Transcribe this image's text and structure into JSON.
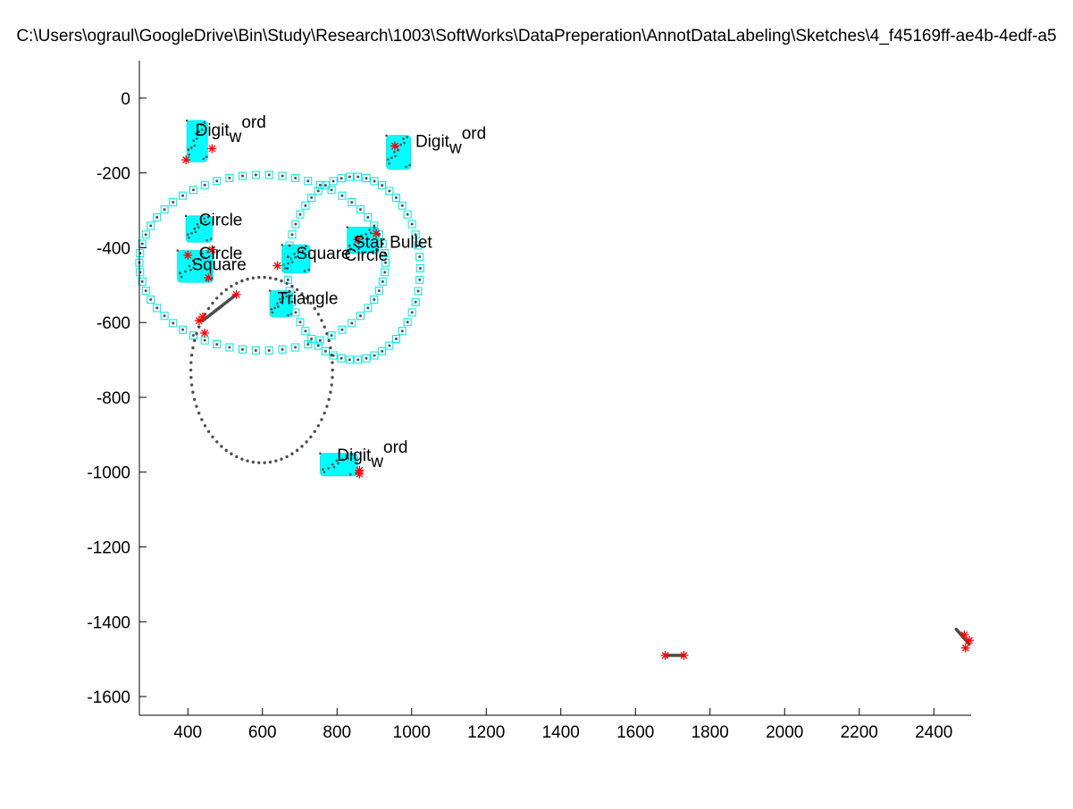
{
  "window": {
    "title": "C:\\Users\\ograul\\GoogleDrive\\Bin\\Study\\Research\\1003\\SoftWorks\\DataPreperation\\AnnotDataLabeling\\Sketches\\4_f45169ff-ae4b-4edf-a5"
  },
  "colors": {
    "background": "#ffffff",
    "axis": "#000000",
    "ink": "#4d4d4d",
    "box": "#00e5e5",
    "fill": "#00ffff",
    "star": "#ff0000"
  },
  "chart_data": {
    "type": "scatter",
    "title": "C:\\Users\\ograul\\GoogleDrive\\Bin\\Study\\Research\\1003\\SoftWorks\\DataPreperation\\AnnotDataLabeling\\Sketches\\4_f45169ff-ae4b-4edf-a5",
    "xlabel": "",
    "ylabel": "",
    "xlim": [
      270,
      2500
    ],
    "ylim": [
      -1650,
      100
    ],
    "grid": false,
    "xticks": [
      400,
      600,
      800,
      1000,
      1200,
      1400,
      1600,
      1800,
      2000,
      2200,
      2400
    ],
    "yticks": [
      0,
      -200,
      -400,
      -600,
      -800,
      -1000,
      -1200,
      -1400,
      -1600
    ],
    "big_circle": {
      "cx": 600,
      "cy": -440,
      "rx": 330,
      "ry": 235
    },
    "right_circle": {
      "cx": 845,
      "cy": -455,
      "rx": 178,
      "ry": 245
    },
    "ellipse": {
      "cx": 598,
      "cy": -727,
      "rx": 190,
      "ry": 248
    },
    "clusters": [
      {
        "label": "Digit",
        "sub": "w",
        "sup": "ord",
        "cx": 425,
        "cy": -115,
        "w": 55,
        "h": 110
      },
      {
        "label": "Digit",
        "sub": "w",
        "sup": "ord",
        "cx": 965,
        "cy": -145,
        "w": 65,
        "h": 90
      },
      {
        "label": "Circle",
        "cx": 430,
        "cy": -350,
        "w": 70,
        "h": 70
      },
      {
        "label": "Square",
        "cx": 420,
        "cy": -450,
        "w": 95,
        "h": 85
      },
      {
        "label": "Square",
        "cx": 690,
        "cy": -430,
        "w": 75,
        "h": 75
      },
      {
        "label": "Star Bullet",
        "cx": 870,
        "cy": -380,
        "w": 85,
        "h": 70
      },
      {
        "label": "Triangle",
        "cx": 650,
        "cy": -550,
        "w": 60,
        "h": 70
      },
      {
        "label": "Digit",
        "sub": "w",
        "sup": "ord",
        "cx": 805,
        "cy": -980,
        "w": 100,
        "h": 60
      }
    ],
    "labels": [
      {
        "text": "Digit",
        "sub": "w",
        "sup": "ord",
        "x": 420,
        "y": -100
      },
      {
        "text": "Digit",
        "sub": "w",
        "sup": "ord",
        "x": 1010,
        "y": -130
      },
      {
        "text": "Circle",
        "x": 430,
        "y": -340
      },
      {
        "text": "Circle",
        "x": 430,
        "y": -430
      },
      {
        "text": "Square",
        "x": 410,
        "y": -460
      },
      {
        "text": "Square",
        "x": 690,
        "y": -430
      },
      {
        "text": "Circle",
        "x": 820,
        "y": -435
      },
      {
        "text": "Star Bullet",
        "x": 845,
        "y": -400
      },
      {
        "text": "Triangle",
        "x": 640,
        "y": -550
      },
      {
        "text": "Digit",
        "sub": "w",
        "sup": "ord",
        "x": 800,
        "y": -970
      }
    ],
    "stroke_tail": {
      "x1": 440,
      "y1": -595,
      "x2": 530,
      "y2": -525
    },
    "small_strokes": [
      {
        "x1": 1680,
        "y1": -1490,
        "x2": 1730,
        "y2": -1490
      },
      {
        "x1": 2460,
        "y1": -1420,
        "x2": 2495,
        "y2": -1460
      }
    ],
    "stars": [
      [
        530,
        -525
      ],
      [
        440,
        -585
      ],
      [
        430,
        -595
      ],
      [
        445,
        -628
      ],
      [
        465,
        -405
      ],
      [
        400,
        -420
      ],
      [
        455,
        -480
      ],
      [
        955,
        -128
      ],
      [
        465,
        -135
      ],
      [
        395,
        -165
      ],
      [
        855,
        -378
      ],
      [
        905,
        -362
      ],
      [
        640,
        -448
      ],
      [
        860,
        -995
      ],
      [
        860,
        -1005
      ],
      [
        1680,
        -1490
      ],
      [
        1730,
        -1490
      ],
      [
        2495,
        -1450
      ],
      [
        2485,
        -1470
      ],
      [
        2482,
        -1435
      ]
    ]
  }
}
